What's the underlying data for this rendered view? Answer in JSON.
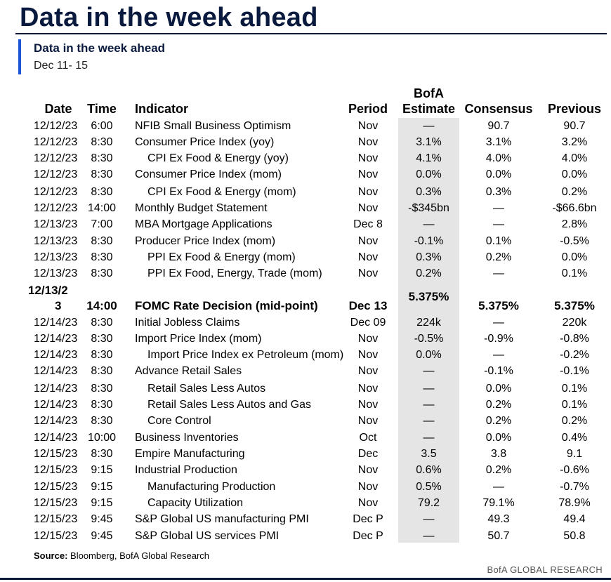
{
  "main_title": "Data in the week ahead",
  "sub_title": "Data in the week ahead",
  "date_range": "Dec 11- 15",
  "headers": {
    "date": "Date",
    "time": "Time",
    "indicator": "Indicator",
    "period": "Period",
    "estimate_line1": "BofA",
    "estimate_line2": "Estimate",
    "consensus": "Consensus",
    "previous": "Previous"
  },
  "rows": [
    {
      "date": "12/12/23",
      "time": "6:00",
      "indicator": "NFIB Small Business Optimism",
      "period": "Nov",
      "estimate": "—",
      "consensus": "90.7",
      "previous": "90.7"
    },
    {
      "date": "12/12/23",
      "time": "8:30",
      "indicator": "Consumer Price Index (yoy)",
      "period": "Nov",
      "estimate": "3.1%",
      "consensus": "3.1%",
      "previous": "3.2%"
    },
    {
      "date": "12/12/23",
      "time": "8:30",
      "indicator": "CPI Ex Food & Energy (yoy)",
      "period": "Nov",
      "estimate": "4.1%",
      "consensus": "4.0%",
      "previous": "4.0%"
    },
    {
      "date": "12/12/23",
      "time": "8:30",
      "indicator": "Consumer Price Index (mom)",
      "period": "Nov",
      "estimate": "0.0%",
      "consensus": "0.0%",
      "previous": "0.0%"
    },
    {
      "date": "12/12/23",
      "time": "8:30",
      "indicator": "CPI Ex Food & Energy (mom)",
      "period": "Nov",
      "estimate": "0.3%",
      "consensus": "0.3%",
      "previous": "0.2%"
    },
    {
      "date": "12/12/23",
      "time": "14:00",
      "indicator": "Monthly Budget Statement",
      "period": "Nov",
      "estimate": "-$345bn",
      "consensus": "—",
      "previous": "-$66.6bn"
    },
    {
      "date": "12/13/23",
      "time": "7:00",
      "indicator": "MBA Mortgage Applications",
      "period": "Dec 8",
      "estimate": "—",
      "consensus": "—",
      "previous": "2.8%"
    },
    {
      "date": "12/13/23",
      "time": "8:30",
      "indicator": "Producer Price Index (mom)",
      "period": "Nov",
      "estimate": "-0.1%",
      "consensus": "0.1%",
      "previous": "-0.5%"
    },
    {
      "date": "12/13/23",
      "time": "8:30",
      "indicator": "PPI Ex Food & Energy (mom)",
      "period": "Nov",
      "estimate": "0.3%",
      "consensus": "0.2%",
      "previous": "0.0%"
    },
    {
      "date": "12/13/23",
      "time": "8:30",
      "indicator": "PPI Ex Food, Energy, Trade (mom)",
      "period": "Nov",
      "estimate": "0.2%",
      "consensus": "—",
      "previous": "0.1%"
    },
    {
      "date_line1": "12/13/2",
      "date_line2": "3",
      "time": "14:00",
      "indicator": "FOMC Rate Decision (mid-point)",
      "period": "Dec 13",
      "estimate": "5.375%",
      "consensus": "5.375%",
      "previous": "5.375%"
    },
    {
      "date": "12/14/23",
      "time": "8:30",
      "indicator": "Initial Jobless Claims",
      "period": "Dec 09",
      "estimate": "224k",
      "consensus": "—",
      "previous": "220k"
    },
    {
      "date": "12/14/23",
      "time": "8:30",
      "indicator": "Import Price Index (mom)",
      "period": "Nov",
      "estimate": "-0.5%",
      "consensus": "-0.9%",
      "previous": "-0.8%"
    },
    {
      "date": "12/14/23",
      "time": "8:30",
      "indicator": "Import Price Index ex Petroleum (mom)",
      "period": "Nov",
      "estimate": "0.0%",
      "consensus": "—",
      "previous": "-0.2%"
    },
    {
      "date": "12/14/23",
      "time": "8:30",
      "indicator": "Advance Retail Sales",
      "period": "Nov",
      "estimate": "—",
      "consensus": "-0.1%",
      "previous": "-0.1%"
    },
    {
      "date": "12/14/23",
      "time": "8:30",
      "indicator": "Retail Sales Less Autos",
      "period": "Nov",
      "estimate": "—",
      "consensus": "0.0%",
      "previous": "0.1%"
    },
    {
      "date": "12/14/23",
      "time": "8:30",
      "indicator": "Retail Sales Less Autos and Gas",
      "period": "Nov",
      "estimate": "—",
      "consensus": "0.2%",
      "previous": "0.1%"
    },
    {
      "date": "12/14/23",
      "time": "8:30",
      "indicator": "Core Control",
      "period": "Nov",
      "estimate": "—",
      "consensus": "0.2%",
      "previous": "0.2%"
    },
    {
      "date": "12/14/23",
      "time": "10:00",
      "indicator": "Business Inventories",
      "period": "Oct",
      "estimate": "—",
      "consensus": "0.0%",
      "previous": "0.4%"
    },
    {
      "date": "12/15/23",
      "time": "8:30",
      "indicator": "Empire Manufacturing",
      "period": "Dec",
      "estimate": "3.5",
      "consensus": "3.8",
      "previous": "9.1"
    },
    {
      "date": "12/15/23",
      "time": "9:15",
      "indicator": "Industrial Production",
      "period": "Nov",
      "estimate": "0.6%",
      "consensus": "0.2%",
      "previous": "-0.6%"
    },
    {
      "date": "12/15/23",
      "time": "9:15",
      "indicator": "Manufacturing Production",
      "period": "Nov",
      "estimate": "0.5%",
      "consensus": "—",
      "previous": "-0.7%"
    },
    {
      "date": "12/15/23",
      "time": "9:15",
      "indicator": "Capacity Utilization",
      "period": "Nov",
      "estimate": "79.2",
      "consensus": "79.1%",
      "previous": "78.9%"
    },
    {
      "date": "12/15/23",
      "time": "9:45",
      "indicator": "S&P Global US manufacturing PMI",
      "period": "Dec P",
      "estimate": "—",
      "consensus": "49.3",
      "previous": "49.4"
    },
    {
      "date": "12/15/23",
      "time": "9:45",
      "indicator": "S&P Global US services PMI",
      "period": "Dec P",
      "estimate": "—",
      "consensus": "50.7",
      "previous": "50.8"
    }
  ],
  "source_label": "Source:",
  "source_text": "Bloomberg, BofA Global Research",
  "brand": "BofA GLOBAL RESEARCH",
  "colors": {
    "title": "#0a1a3f",
    "accent": "#1a56d6",
    "estimate_shade": "#e5e5e5"
  }
}
